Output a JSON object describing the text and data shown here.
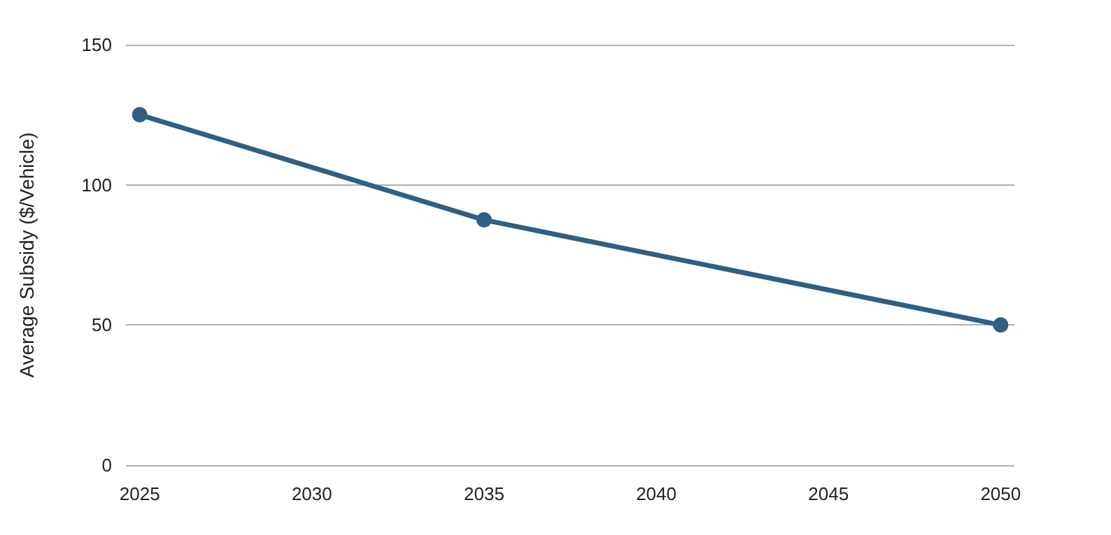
{
  "chart_data": {
    "type": "line",
    "ylabel": "Average Subsidy ($/Vehicle)",
    "x": [
      2025,
      2035,
      2050
    ],
    "series": [
      {
        "color": "#2e5f85",
        "values": [
          125,
          87.5,
          50
        ]
      }
    ],
    "xlim": [
      2024.6,
      2050.4
    ],
    "xticks": [
      2025,
      2030,
      2035,
      2040,
      2045,
      2050
    ],
    "ylim": [
      0,
      150
    ],
    "yticks": [
      0,
      50,
      100,
      150
    ],
    "grid": "y",
    "marker": "circle",
    "line_style": "solid"
  }
}
